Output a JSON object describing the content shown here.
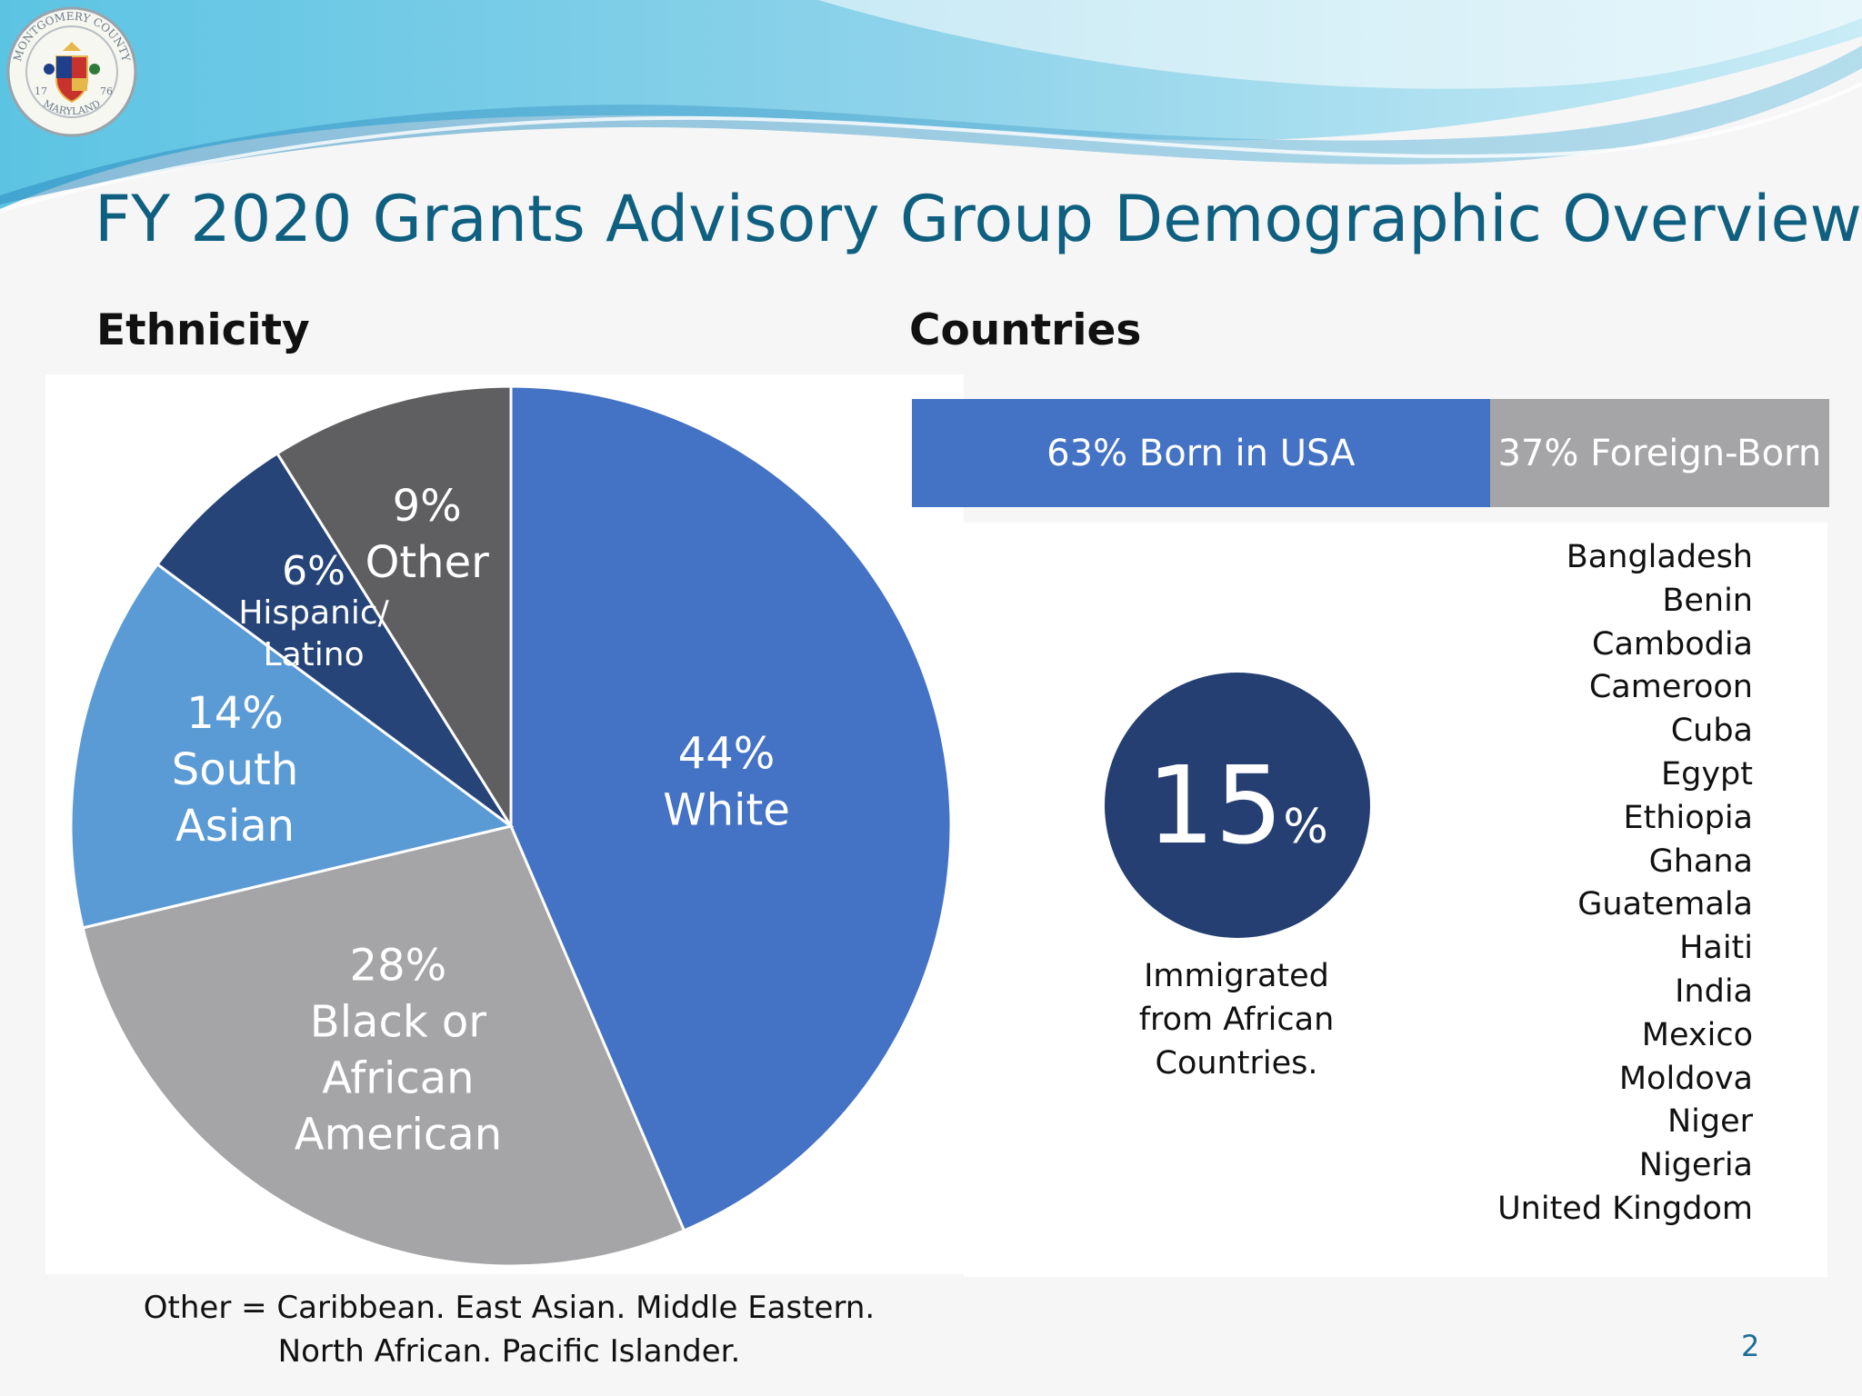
{
  "slide": {
    "title": "FY 2020 Grants Advisory Group Demographic Overview",
    "page_number": "2",
    "seal": {
      "icon": "county-seal-icon",
      "text_top": "MONTGOMERY COUNTY",
      "text_bottom": "MARYLAND",
      "year_left": "17",
      "year_right": "76"
    }
  },
  "ethnicity": {
    "heading": "Ethnicity",
    "footnote_line1": "Other = Caribbean. East Asian. Middle Eastern.",
    "footnote_line2": "North African. Pacific Islander."
  },
  "countries": {
    "heading": "Countries",
    "born_label": "63% Born in USA",
    "foreign_label": "37% Foreign-Born",
    "immigrated_value": "15",
    "immigrated_unit": "%",
    "immigrated_caption_1": "Immigrated",
    "immigrated_caption_2": "from African",
    "immigrated_caption_3": "Countries.",
    "list": [
      "Bangladesh",
      "Benin",
      "Cambodia",
      "Cameroon",
      "Cuba",
      "Egypt",
      "Ethiopia",
      "Ghana",
      "Guatemala",
      "Haiti",
      "India",
      "Mexico",
      "Moldova",
      "Niger",
      "Nigeria",
      "United Kingdom"
    ]
  },
  "chart_data": [
    {
      "type": "pie",
      "title": "Ethnicity",
      "categories": [
        "White",
        "Black or African American",
        "South Asian",
        "Hispanic/ Latino",
        "Other"
      ],
      "values": [
        44,
        28,
        14,
        6,
        9
      ],
      "labels": [
        {
          "pct": "44%",
          "lines": [
            "White"
          ]
        },
        {
          "pct": "28%",
          "lines": [
            "Black or",
            "African",
            "American"
          ]
        },
        {
          "pct": "14%",
          "lines": [
            "South",
            "Asian"
          ]
        },
        {
          "pct": "6%",
          "lines": [
            "Hispanic/",
            "Latino"
          ]
        },
        {
          "pct": "9%",
          "lines": [
            "Other"
          ]
        }
      ],
      "colors": [
        "#4472c4",
        "#a5a5a7",
        "#5b9bd5",
        "#264478",
        "#5f5e60"
      ],
      "start_angle": "12 o'clock",
      "direction": "clockwise",
      "legend": "none"
    },
    {
      "type": "bar",
      "orientation": "horizontal-stacked",
      "categories": [
        "Born in USA",
        "Foreign-Born"
      ],
      "values": [
        63,
        37
      ],
      "colors": [
        "#4472c4",
        "#a5a5a7"
      ],
      "legend": "none"
    }
  ]
}
